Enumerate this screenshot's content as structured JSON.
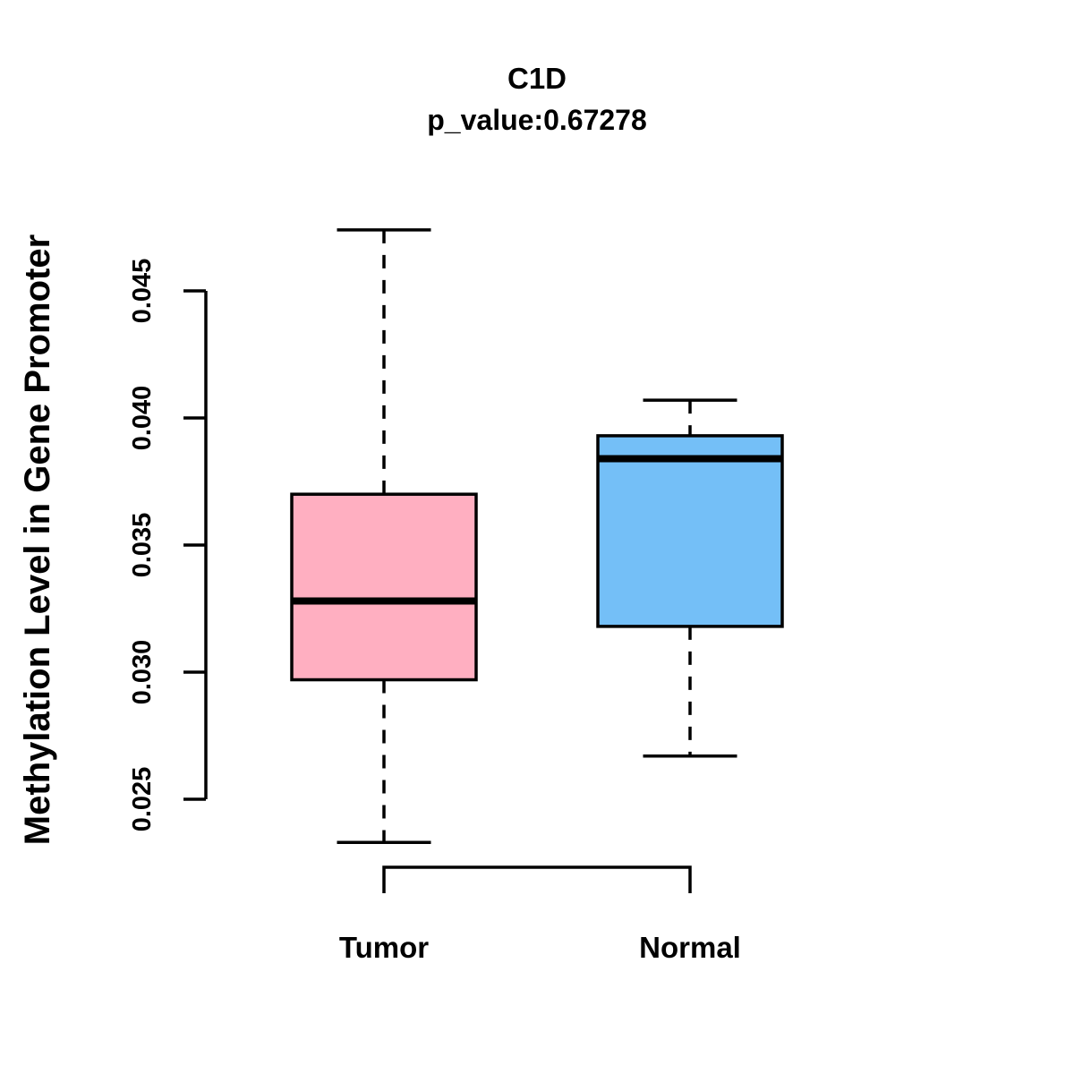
{
  "title": "C1D",
  "subtitle": "p_value:0.67278",
  "y_axis": {
    "label": "Methylation Level in Gene Promoter",
    "tick_labels": [
      "0.025",
      "0.030",
      "0.035",
      "0.040",
      "0.045"
    ]
  },
  "x_axis": {
    "categories": [
      "Tumor",
      "Normal"
    ]
  },
  "chart_data": {
    "type": "boxplot",
    "title": "C1D",
    "subtitle": "p_value:0.67278",
    "ylabel": "Methylation Level in Gene Promoter",
    "xlabel": "",
    "categories": [
      "Tumor",
      "Normal"
    ],
    "series": [
      {
        "name": "Tumor",
        "color": "#FFAFC1",
        "whisker_low": 0.0233,
        "q1": 0.0297,
        "median": 0.0328,
        "q3": 0.037,
        "whisker_high": 0.0474
      },
      {
        "name": "Normal",
        "color": "#74BFF7",
        "whisker_low": 0.0267,
        "q1": 0.0318,
        "median": 0.0384,
        "q3": 0.0393,
        "whisker_high": 0.0407
      }
    ],
    "y_ticks": [
      0.025,
      0.03,
      0.035,
      0.04,
      0.045
    ],
    "ylim": [
      0.023,
      0.0478
    ],
    "grid": false,
    "legend": "none",
    "box_border_color": "#000000",
    "median_color": "#000000",
    "whisker_style": "dashed"
  }
}
